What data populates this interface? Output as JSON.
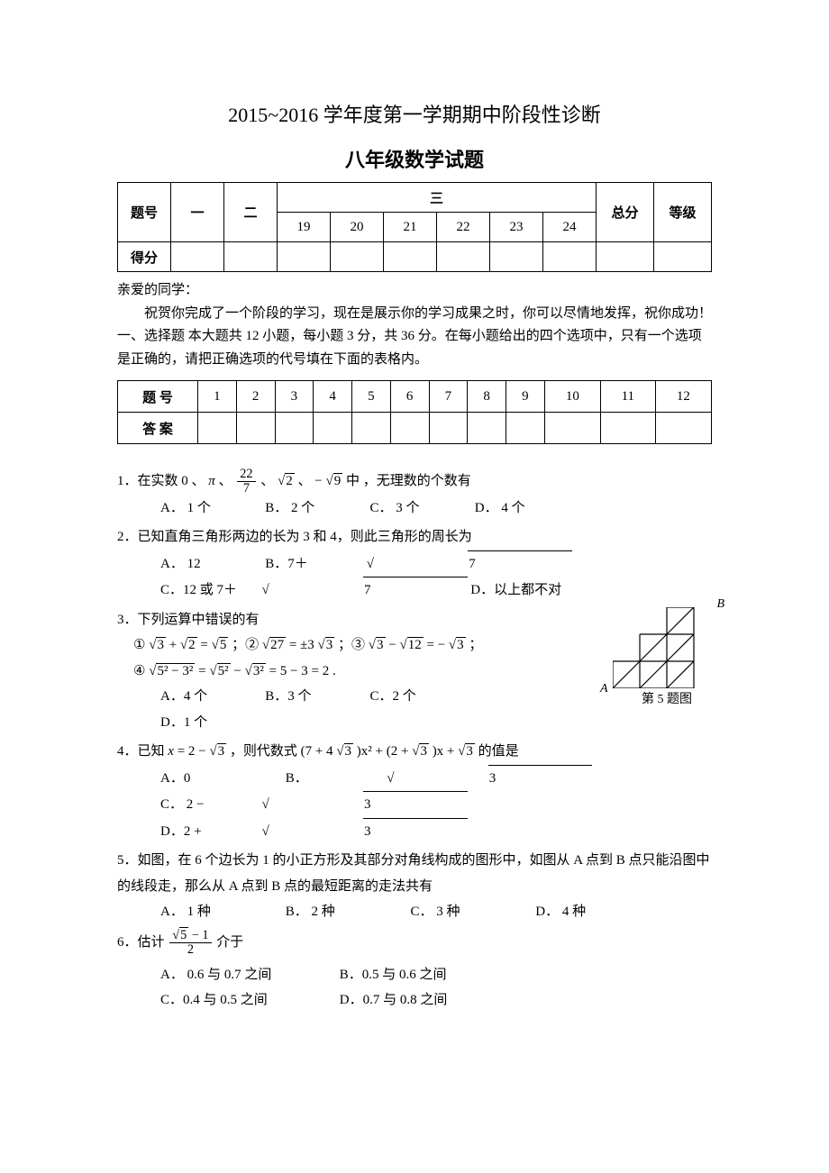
{
  "doc": {
    "title1": "2015~2016 学年度第一学期期中阶段性诊断",
    "title2": "八年级数学试题",
    "greeting_line1": "亲爱的同学：",
    "greeting_line2": "祝贺你完成了一个阶段的学习，现在是展示你的学习成果之时，你可以尽情地发挥，祝你成功！",
    "section1_instr": "一、选择题  本大题共 12 小题，每小题 3 分，共 36 分。在每小题给出的四个选项中，只有一个选项是正确的，请把正确选项的代号填在下面的表格内。"
  },
  "score_table": {
    "headers": {
      "th": "题号",
      "c1": "一",
      "c2": "二",
      "c3": "三",
      "sub": [
        "19",
        "20",
        "21",
        "22",
        "23",
        "24"
      ],
      "total": "总分",
      "grade": "等级",
      "row2": "得分"
    }
  },
  "answer_table": {
    "row1_label": "题  号",
    "row2_label": "答  案",
    "nums": [
      "1",
      "2",
      "3",
      "4",
      "5",
      "6",
      "7",
      "8",
      "9",
      "10",
      "11",
      "12"
    ]
  },
  "q1": {
    "stem_a": "1．在实数 0 、",
    "pi": "π",
    "sep1": "、",
    "frac_num": "22",
    "frac_den": "7",
    "sep2": " 、 ",
    "sqrt2": "2",
    "sep3": " 、 −",
    "sqrt9": "9",
    "stem_b": " 中 ，无理数的个数有",
    "A": "A．  1 个",
    "B": "B．  2 个",
    "C": "C．  3 个",
    "D": "D．  4 个"
  },
  "q2": {
    "stem": "2．已知直角三角形两边的长为 3 和 4，则此三角形的周长为",
    "A": "A．  12",
    "B_pre": "B．7＋",
    "B_sqrt": "7",
    "C_pre": "C．12 或 7＋",
    "C_sqrt": "7",
    "D": "D．以上都不对"
  },
  "q3": {
    "stem": "3．下列运算中错误的有",
    "l1_a": "①",
    "l1_s3": "3",
    "l1_plus": " + ",
    "l1_s2": "2",
    "l1_eq": " = ",
    "l1_s5": "5",
    "l1_semi": " ；②",
    "l1_s27": "27",
    "l1_eq2": " = ±3",
    "l1_s3b": "3",
    "l1_semi2": " ；③",
    "l1_s3c": "3",
    "l1_minus": " − ",
    "l1_s12": "12",
    "l1_eq3": " = −",
    "l1_s3d": "3",
    "l1_end": " ；",
    "l2_a": "④",
    "l2_arg": "5² − 3²",
    "l2_eq": " = ",
    "l2_s5": "5²",
    "l2_minus": " − ",
    "l2_s3": "3²",
    "l2_tail": " = 5 − 3 = 2 .",
    "A": "A．4 个",
    "B": "B．3 个",
    "C": "C．2 个",
    "D": "D．1 个"
  },
  "q4": {
    "stem_a": "4．已知 ",
    "x": "x",
    "eq": " = 2 − ",
    "s3": "3",
    "stem_b": " ，则代数式 (7 + 4",
    "s3b": "3",
    "mid": ")x² + (2 + ",
    "s3c": "3",
    "stem_c": ")x + ",
    "s3d": "3",
    "stem_d": " 的值是",
    "A": "A．0",
    "B_pre": "B．",
    "B_s": "3",
    "C_pre": "C．  2 − ",
    "C_s": "3",
    "D_pre": "D．2 + ",
    "D_s": "3"
  },
  "q5": {
    "stem": "5．如图，在 6 个边长为 1 的小正方形及其部分对角线构成的图形中，如图从 A 点到 B 点只能沿图中的线段走，那么从 A 点到 B 点的最短距离的走法共有",
    "A": "A．  1 种",
    "B": "B．  2 种",
    "C": "C．  3 种",
    "D": "D．   4 种",
    "caption": "第 5 题图",
    "labelA": "A",
    "labelB": "B"
  },
  "q6": {
    "stem_a": "6．估计 ",
    "num_pre": "",
    "num_sqrt": "5",
    "num_post": " − 1",
    "den": "2",
    "stem_b": " 介于",
    "A": "A．  0.6 与 0.7 之间",
    "B": "B．0.5 与 0.6 之间",
    "C": "C．0.4 与 0.5 之间",
    "D": "D．0.7 与 0.8 之间"
  },
  "fig5": {
    "width": 120,
    "height": 90,
    "cell": 30,
    "stroke": "#000000",
    "stroke_width": 1.2
  }
}
